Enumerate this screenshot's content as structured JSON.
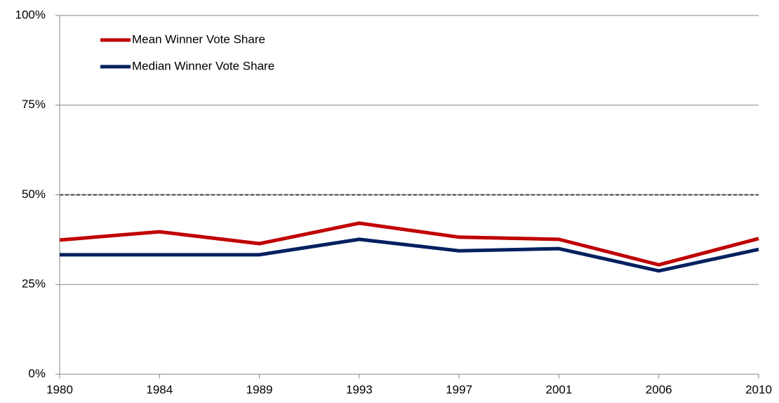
{
  "chart_data": {
    "type": "line",
    "categories": [
      "1980",
      "1984",
      "1989",
      "1993",
      "1997",
      "2001",
      "2006",
      "2010"
    ],
    "series": [
      {
        "name": "Mean Winner Vote Share",
        "color": "#c00000",
        "values": [
          37.4,
          39.7,
          36.4,
          42.1,
          38.2,
          37.6,
          30.5,
          37.8
        ]
      },
      {
        "name": "Median Winner Vote Share",
        "color": "#002060",
        "values": [
          33.3,
          33.3,
          33.3,
          37.6,
          34.4,
          35.0,
          28.8,
          34.8
        ]
      }
    ],
    "ylim": [
      0,
      100
    ],
    "yticks": [
      {
        "value": 0,
        "label": "0%"
      },
      {
        "value": 25,
        "label": "25%"
      },
      {
        "value": 50,
        "label": "50%"
      },
      {
        "value": 75,
        "label": "75%"
      },
      {
        "value": 100,
        "label": "100%"
      }
    ],
    "grid": true,
    "reference_line": 50,
    "legend": "top-left"
  }
}
